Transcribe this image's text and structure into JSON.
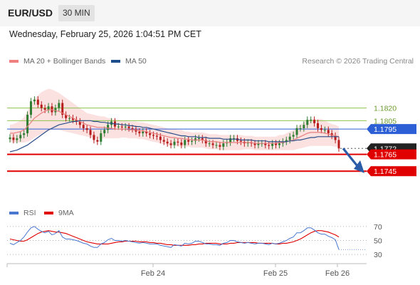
{
  "header": {
    "symbol": "EUR/USD",
    "timeframe": "30 MIN"
  },
  "datetime": "Wednesday, February 25, 2026 1:04:51 PM CET",
  "legend": {
    "items": [
      {
        "label": "MA 20 + Bollinger Bands",
        "color": "#f08080"
      },
      {
        "label": "MA 50",
        "color": "#1f4e8c"
      }
    ],
    "credit": "Research © 2026 Trading Central"
  },
  "rsi_legend": {
    "items": [
      {
        "label": "RSI",
        "color": "#4a78d0"
      },
      {
        "label": "9MA",
        "color": "#e00000"
      }
    ]
  },
  "colors": {
    "up": "#2e7d32",
    "down": "#b71c1c",
    "pivot_line": "#2c5fd6",
    "resistance": "#8bc34a",
    "support": "#e00000",
    "arrow": "#2a5ca8"
  },
  "chart_data": [
    {
      "type": "candlestick",
      "y_range": [
        1.1735,
        1.184
      ],
      "x_ticks": [
        "Feb 24",
        "Feb 25",
        "Feb 26"
      ],
      "levels": [
        {
          "label": "1.1820",
          "value": 1.182,
          "kind": "resistance"
        },
        {
          "label": "1.1805",
          "value": 1.1805,
          "kind": "resistance"
        },
        {
          "label": "1.1795",
          "value": 1.1795,
          "kind": "pivot"
        },
        {
          "label": "1.1772",
          "value": 1.1772,
          "kind": "last"
        },
        {
          "label": "1.1765",
          "value": 1.1765,
          "kind": "support"
        },
        {
          "label": "1.1745",
          "value": 1.1745,
          "kind": "support"
        }
      ],
      "close": [
        1.1785,
        1.1782,
        1.1784,
        1.1788,
        1.179,
        1.1812,
        1.1828,
        1.183,
        1.1824,
        1.182,
        1.1818,
        1.1822,
        1.1815,
        1.182,
        1.1826,
        1.1812,
        1.1808,
        1.1808,
        1.1806,
        1.1804,
        1.18,
        1.1796,
        1.1794,
        1.1788,
        1.1782,
        1.178,
        1.179,
        1.1794,
        1.18,
        1.1804,
        1.1798,
        1.1798,
        1.1797,
        1.1798,
        1.1796,
        1.1795,
        1.1792,
        1.179,
        1.1792,
        1.179,
        1.1788,
        1.1787,
        1.1786,
        1.1782,
        1.178,
        1.1778,
        1.1776,
        1.178,
        1.1779,
        1.1776,
        1.1782,
        1.178,
        1.1781,
        1.1784,
        1.1784,
        1.1782,
        1.1778,
        1.1778,
        1.1776,
        1.1776,
        1.1774,
        1.1778,
        1.1779,
        1.1784,
        1.1784,
        1.1781,
        1.178,
        1.1778,
        1.1779,
        1.1778,
        1.1776,
        1.1778,
        1.1778,
        1.1776,
        1.1775,
        1.1778,
        1.1776,
        1.1778,
        1.178,
        1.1782,
        1.1786,
        1.1788,
        1.1796,
        1.1796,
        1.18,
        1.1806,
        1.1806,
        1.1802,
        1.1796,
        1.1794,
        1.1794,
        1.179,
        1.1787,
        1.1782,
        1.1772
      ],
      "ma20": [
        1.179,
        1.179,
        1.1791,
        1.1792,
        1.1794,
        1.1798,
        1.1803,
        1.1808,
        1.1811,
        1.1814,
        1.1816,
        1.1818,
        1.1818,
        1.1817,
        1.1816,
        1.1814,
        1.1812,
        1.181,
        1.1808,
        1.1806,
        1.1804,
        1.1802,
        1.18,
        1.1799,
        1.1798,
        1.1797,
        1.1797,
        1.1797,
        1.1796,
        1.1796,
        1.1795,
        1.1795,
        1.1795,
        1.1795,
        1.1794,
        1.1794,
        1.1794,
        1.1793,
        1.1793,
        1.1792,
        1.1791,
        1.179,
        1.1789,
        1.1788,
        1.1787,
        1.1786,
        1.1785,
        1.1785,
        1.1784,
        1.1784,
        1.1783,
        1.1783,
        1.1782,
        1.1782,
        1.1782,
        1.1782,
        1.1781,
        1.178,
        1.178,
        1.178,
        1.1779,
        1.1779,
        1.1779,
        1.1779,
        1.1779,
        1.1779,
        1.1779,
        1.1779,
        1.1779,
        1.1779,
        1.1778,
        1.1778,
        1.1778,
        1.1778,
        1.1778,
        1.1778,
        1.1778,
        1.1779,
        1.1779,
        1.178,
        1.1781,
        1.1782,
        1.1784,
        1.1786,
        1.1788,
        1.179,
        1.1791,
        1.1791,
        1.1791,
        1.1791,
        1.179,
        1.1789,
        1.1788,
        1.1787,
        1.1786
      ],
      "ma50": [
        1.1768,
        1.1769,
        1.177,
        1.1772,
        1.1774,
        1.1776,
        1.1779,
        1.1782,
        1.1785,
        1.1788,
        1.1791,
        1.1794,
        1.1796,
        1.1798,
        1.18,
        1.1801,
        1.1802,
        1.1803,
        1.1804,
        1.1804,
        1.1805,
        1.1805,
        1.1805,
        1.1805,
        1.1804,
        1.1804,
        1.1803,
        1.1803,
        1.1802,
        1.1802,
        1.1801,
        1.1801,
        1.18,
        1.18,
        1.1799,
        1.1799,
        1.1798,
        1.1798,
        1.1797,
        1.1797,
        1.1796,
        1.1795,
        1.1794,
        1.1793,
        1.1792,
        1.1791,
        1.179,
        1.1789,
        1.1788,
        1.1787,
        1.1787,
        1.1786,
        1.1786,
        1.1786,
        1.1785,
        1.1785,
        1.1785,
        1.1784,
        1.1784,
        1.1784,
        1.1784,
        1.1783,
        1.1783,
        1.1783,
        1.1783,
        1.1783,
        1.1782,
        1.1782,
        1.1782,
        1.1782,
        1.1781,
        1.1781,
        1.1781,
        1.1781,
        1.178,
        1.178,
        1.178,
        1.178,
        1.178,
        1.178,
        1.1781,
        1.1781,
        1.1782,
        1.1782,
        1.1783,
        1.1784,
        1.1785,
        1.1785,
        1.1786,
        1.1786,
        1.1786,
        1.1786,
        1.1786,
        1.1786,
        1.1786
      ],
      "bb_width": [
        0.001,
        0.0011,
        0.0012,
        0.0013,
        0.0015,
        0.0018,
        0.0021,
        0.0023,
        0.0024,
        0.0025,
        0.0025,
        0.0025,
        0.0024,
        0.0023,
        0.0022,
        0.0021,
        0.002,
        0.0019,
        0.0018,
        0.0017,
        0.0016,
        0.0015,
        0.0014,
        0.0014,
        0.0014,
        0.0014,
        0.0013,
        0.0013,
        0.0012,
        0.0012,
        0.0011,
        0.0011,
        0.001,
        0.001,
        0.001,
        0.001,
        0.001,
        0.001,
        0.001,
        0.001,
        0.001,
        0.001,
        0.001,
        0.001,
        0.001,
        0.001,
        0.001,
        0.001,
        0.001,
        0.001,
        0.0009,
        0.0009,
        0.0009,
        0.0009,
        0.0009,
        0.0009,
        0.0009,
        0.0009,
        0.0009,
        0.0009,
        0.0009,
        0.0009,
        0.0009,
        0.0009,
        0.0009,
        0.0009,
        0.0009,
        0.0008,
        0.0008,
        0.0008,
        0.0008,
        0.0008,
        0.0008,
        0.0008,
        0.0008,
        0.0008,
        0.0008,
        0.0009,
        0.0009,
        0.001,
        0.0011,
        0.0012,
        0.0013,
        0.0014,
        0.0015,
        0.0016,
        0.0016,
        0.0016,
        0.0016,
        0.0016,
        0.0015,
        0.0014,
        0.0013,
        0.0013,
        0.0012
      ]
    },
    {
      "type": "line",
      "name": "RSI",
      "y_range": [
        25,
        78
      ],
      "y_ticks": [
        70,
        50,
        30
      ],
      "rsi": [
        46,
        44,
        47,
        50,
        55,
        62,
        68,
        70,
        66,
        63,
        61,
        63,
        58,
        60,
        64,
        55,
        52,
        52,
        51,
        50,
        48,
        46,
        45,
        42,
        40,
        40,
        45,
        47,
        51,
        53,
        50,
        50,
        49,
        50,
        49,
        48,
        47,
        46,
        47,
        46,
        45,
        45,
        45,
        43,
        42,
        41,
        40,
        44,
        43,
        42,
        46,
        45,
        46,
        49,
        49,
        47,
        45,
        45,
        44,
        44,
        43,
        46,
        47,
        50,
        50,
        48,
        47,
        46,
        47,
        46,
        45,
        46,
        46,
        45,
        44,
        46,
        45,
        46,
        48,
        50,
        53,
        55,
        61,
        61,
        64,
        68,
        68,
        65,
        61,
        59,
        59,
        56,
        54,
        51,
        37
      ],
      "ma9": [
        52,
        51,
        50,
        49,
        49,
        51,
        54,
        57,
        60,
        62,
        63,
        64,
        63,
        62,
        62,
        61,
        60,
        58,
        56,
        54,
        52,
        50,
        48,
        47,
        46,
        45,
        45,
        45,
        45,
        46,
        47,
        48,
        48,
        49,
        49,
        49,
        49,
        48,
        48,
        48,
        47,
        47,
        46,
        46,
        45,
        44,
        44,
        43,
        43,
        43,
        43,
        43,
        44,
        44,
        45,
        45,
        46,
        46,
        46,
        46,
        45,
        45,
        45,
        46,
        46,
        47,
        47,
        47,
        47,
        47,
        47,
        46,
        46,
        46,
        46,
        46,
        45,
        45,
        46,
        46,
        47,
        48,
        50,
        52,
        55,
        58,
        61,
        63,
        64,
        64,
        63,
        62,
        60,
        58,
        55
      ]
    }
  ]
}
